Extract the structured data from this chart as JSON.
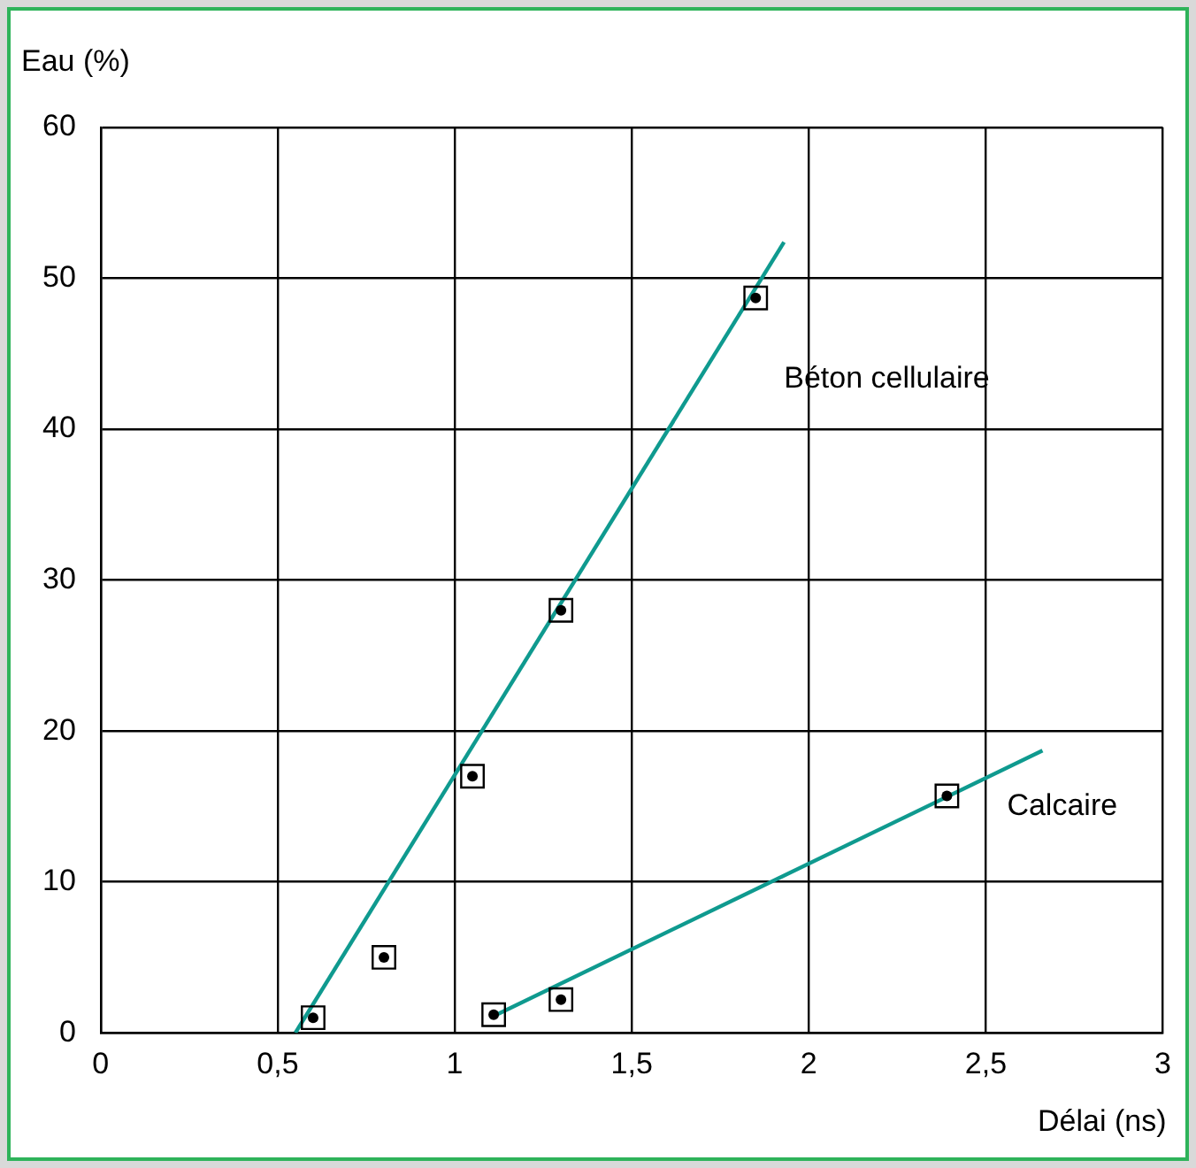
{
  "chart_data": {
    "type": "scatter",
    "xlabel": "Délai (ns)",
    "ylabel": "Eau (%)",
    "xlim": [
      0,
      3
    ],
    "xticks": [
      0,
      {
        "value": 0.5,
        "label": "0,5"
      },
      1,
      {
        "value": 1.5,
        "label": "1,5"
      },
      2,
      {
        "value": 2.5,
        "label": "2,5"
      },
      3
    ],
    "ylim": [
      0,
      60
    ],
    "yticks": [
      0,
      10,
      20,
      30,
      40,
      50,
      60
    ],
    "grid": true,
    "series": [
      {
        "name": "Béton cellulaire",
        "marker": "square",
        "color": "#000000",
        "x": [
          0.6,
          0.8,
          1.05,
          1.3,
          1.85
        ],
        "values": [
          1,
          5,
          17,
          28,
          48.7
        ]
      },
      {
        "type": "line",
        "color": "#0f9a8f",
        "x": [
          0.55,
          1.93
        ],
        "values": [
          0,
          52.4
        ]
      },
      {
        "name": "Calcaire",
        "marker": "square",
        "color": "#000000",
        "x": [
          1.11,
          1.3,
          2.39
        ],
        "values": [
          1.2,
          2.2,
          15.7
        ]
      },
      {
        "type": "line",
        "color": "#0f9a8f",
        "x": [
          1.1,
          2.66
        ],
        "values": [
          1,
          18.7
        ]
      }
    ]
  }
}
